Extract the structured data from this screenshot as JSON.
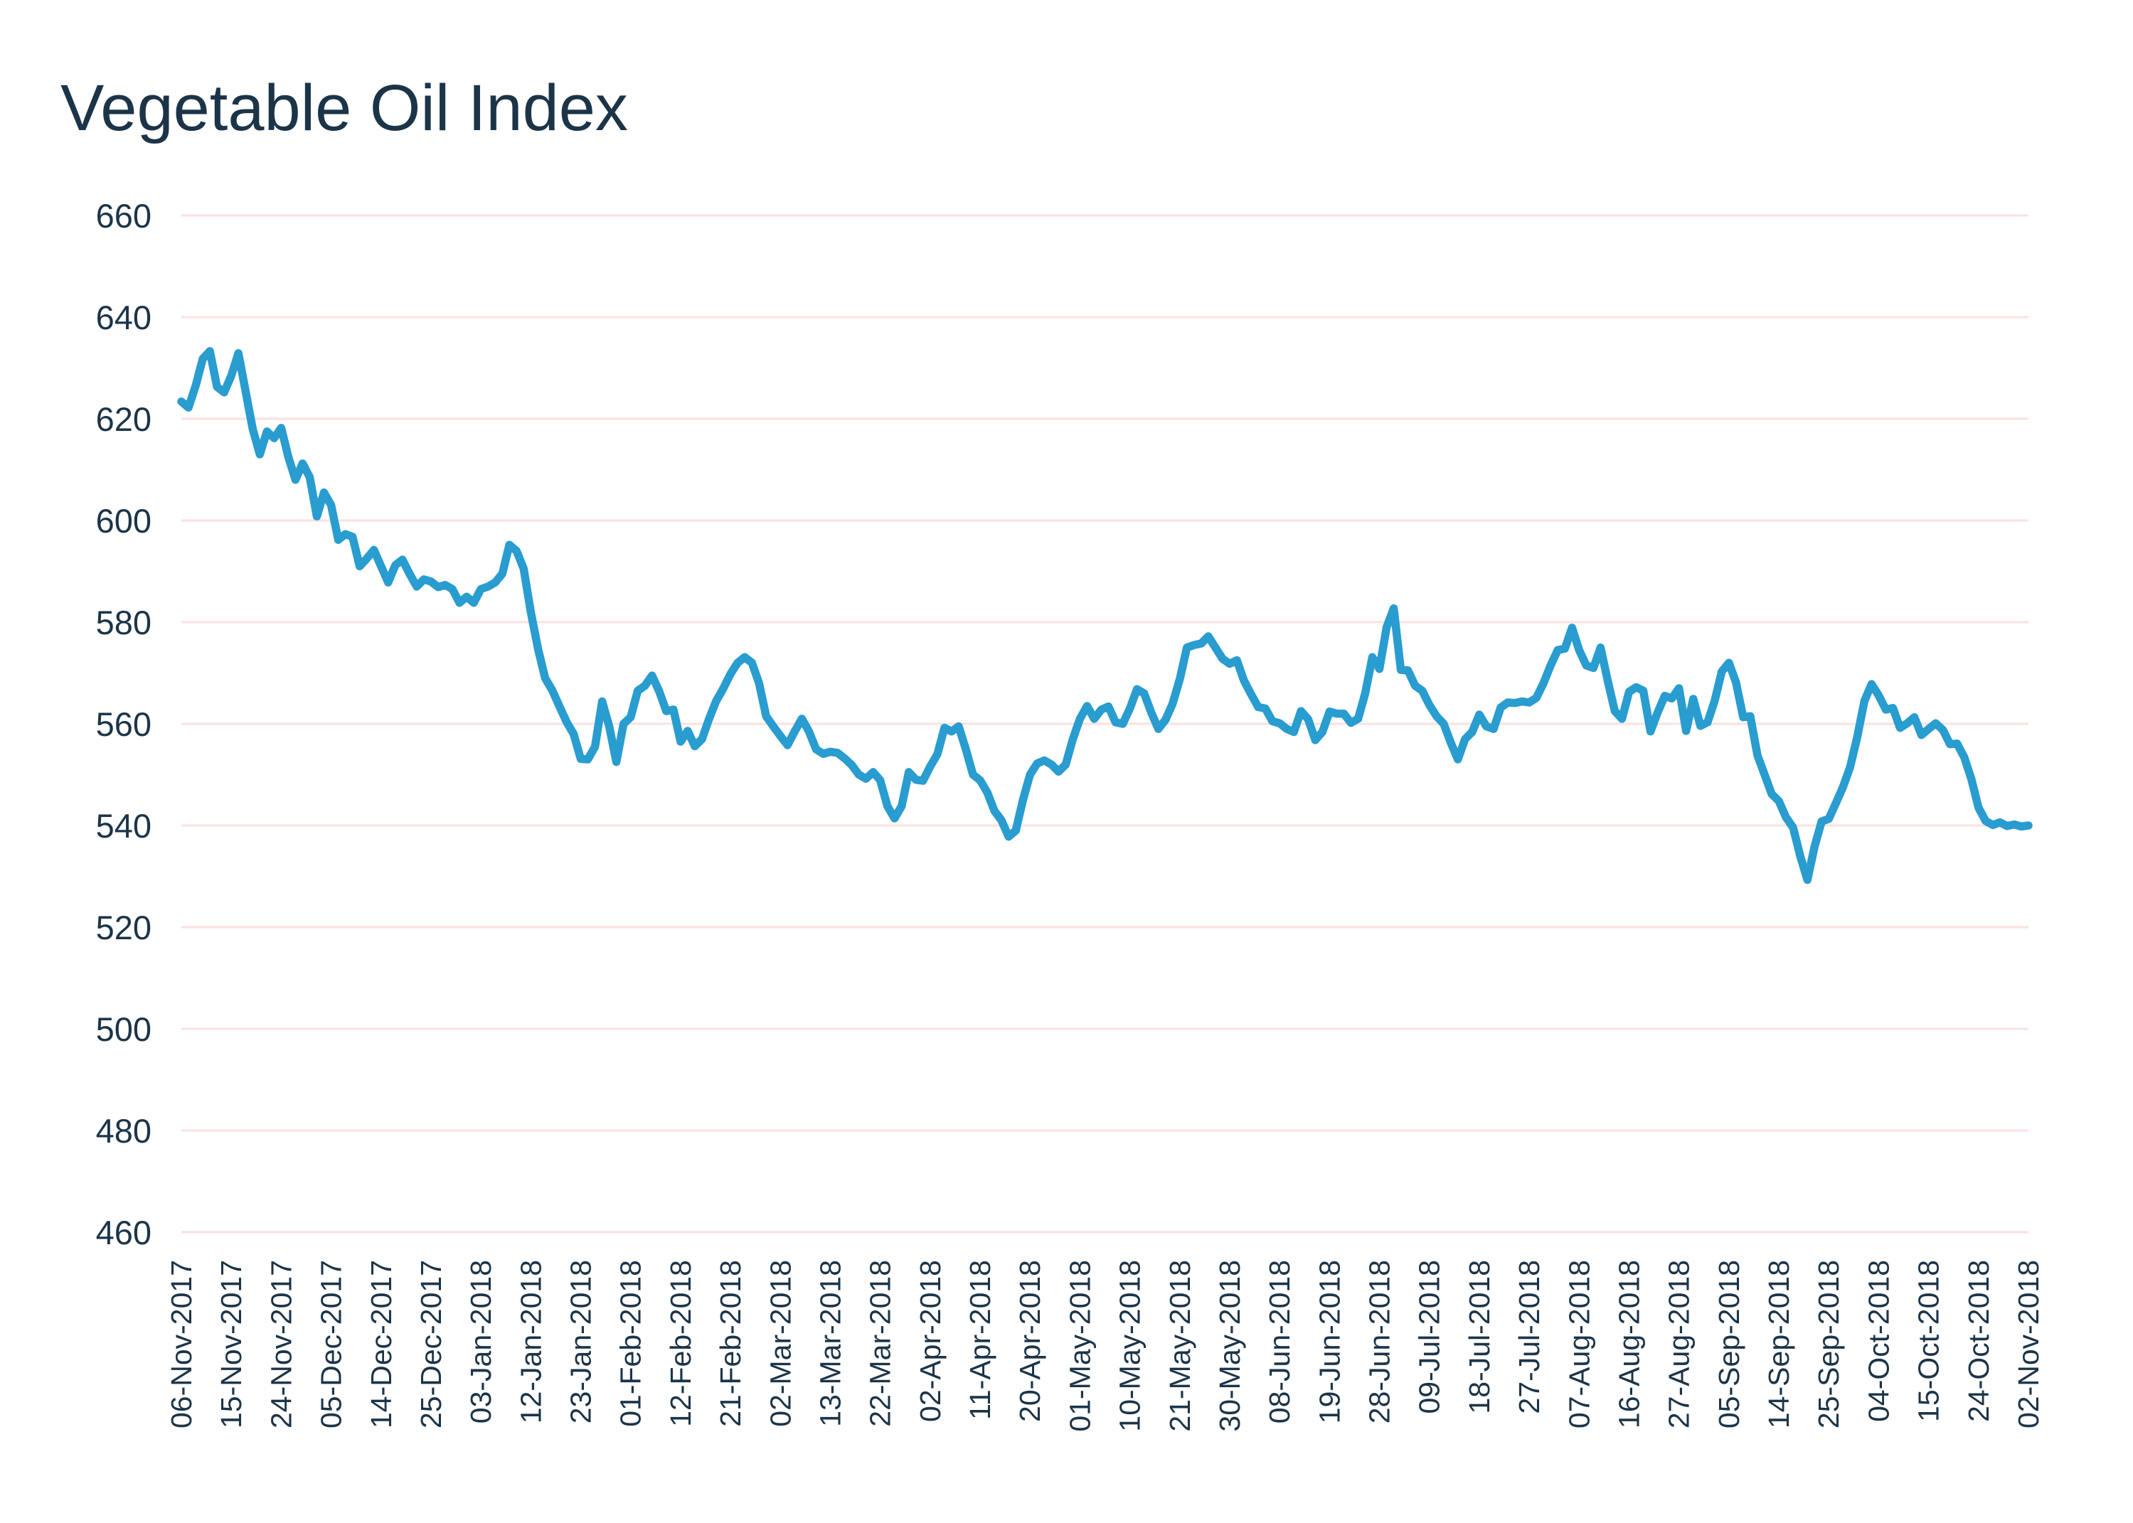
{
  "page": {
    "title": "Vegetable Oil Index"
  },
  "colors": {
    "line": "#299CD0",
    "grid": "#FAE2DF",
    "text": "#1C3448",
    "background": "#FFFFFF"
  },
  "chart_data": {
    "type": "line",
    "title": "Vegetable Oil Index",
    "xlabel": "",
    "ylabel": "",
    "ylim": [
      460,
      660
    ],
    "y_ticks": [
      460,
      480,
      500,
      520,
      540,
      560,
      580,
      600,
      620,
      640,
      660
    ],
    "grid": "horizontal",
    "legend_position": "none",
    "points_per_tick": 7,
    "x_tick_labels": [
      "06-Nov-2017",
      "15-Nov-2017",
      "24-Nov-2017",
      "05-Dec-2017",
      "14-Dec-2017",
      "25-Dec-2017",
      "03-Jan-2018",
      "12-Jan-2018",
      "23-Jan-2018",
      "01-Feb-2018",
      "12-Feb-2018",
      "21-Feb-2018",
      "02-Mar-2018",
      "13-Mar-2018",
      "22-Mar-2018",
      "02-Apr-2018",
      "11-Apr-2018",
      "20-Apr-2018",
      "01-May-2018",
      "10-May-2018",
      "21-May-2018",
      "30-May-2018",
      "08-Jun-2018",
      "19-Jun-2018",
      "28-Jun-2018",
      "09-Jul-2018",
      "18-Jul-2018",
      "27-Jul-2018",
      "07-Aug-2018",
      "16-Aug-2018",
      "27-Aug-2018",
      "05-Sep-2018",
      "14-Sep-2018",
      "25-Sep-2018",
      "04-Oct-2018",
      "15-Oct-2018",
      "24-Oct-2018",
      "02-Nov-2018"
    ],
    "series": [
      {
        "name": "Vegetable Oil Index",
        "color": "#299CD0",
        "values": [
          623.4,
          622.2,
          626.5,
          631.8,
          633.3,
          626.3,
          625.2,
          628.5,
          632.9,
          625.5,
          618.0,
          613.0,
          617.5,
          616.2,
          618.2,
          612.5,
          608.0,
          611.2,
          608.5,
          600.8,
          605.5,
          603.0,
          596.2,
          597.3,
          596.8,
          591.0,
          592.5,
          594.2,
          591.0,
          587.8,
          591.2,
          592.3,
          589.5,
          587.0,
          588.4,
          588.0,
          586.9,
          587.3,
          586.5,
          583.8,
          585.0,
          583.8,
          586.5,
          587.0,
          587.8,
          589.5,
          595.2,
          594.0,
          590.5,
          582.0,
          574.8,
          569.0,
          566.6,
          563.5,
          560.4,
          558.0,
          553.1,
          553.0,
          555.5,
          564.4,
          559.5,
          552.5,
          560.0,
          561.3,
          566.5,
          567.5,
          569.5,
          566.4,
          562.5,
          562.8,
          556.5,
          558.6,
          555.6,
          557.0,
          561.0,
          564.5,
          567.0,
          569.8,
          572.0,
          573.1,
          572.0,
          568.0,
          561.5,
          559.5,
          557.6,
          555.8,
          558.5,
          561.0,
          558.5,
          555.0,
          554.1,
          554.5,
          554.3,
          553.2,
          551.9,
          550.0,
          549.2,
          550.5,
          548.9,
          543.8,
          541.4,
          543.8,
          550.5,
          549.0,
          548.8,
          551.6,
          554.0,
          559.2,
          558.5,
          559.5,
          555.0,
          550.0,
          548.9,
          546.5,
          542.9,
          541.0,
          537.8,
          539.0,
          545.0,
          550.0,
          552.2,
          552.8,
          552.0,
          550.6,
          552.0,
          557.0,
          561.0,
          563.5,
          561.0,
          562.8,
          563.4,
          560.3,
          560.0,
          563.0,
          566.8,
          566.0,
          562.2,
          559.0,
          560.8,
          564.0,
          568.8,
          575.0,
          575.5,
          575.8,
          577.2,
          575.0,
          572.8,
          571.8,
          572.5,
          568.5,
          565.8,
          563.3,
          563.0,
          560.5,
          560.1,
          559.0,
          558.4,
          562.5,
          560.9,
          556.8,
          558.4,
          562.4,
          562.0,
          562.0,
          560.2,
          561.0,
          566.0,
          573.1,
          570.8,
          579.0,
          582.7,
          570.6,
          570.5,
          567.5,
          566.5,
          563.7,
          561.5,
          560.0,
          556.3,
          553.0,
          557.0,
          558.4,
          561.8,
          559.5,
          559.0,
          563.2,
          564.2,
          564.1,
          564.4,
          564.2,
          565.1,
          568.0,
          571.5,
          574.5,
          574.8,
          578.9,
          574.5,
          571.5,
          571.0,
          575.0,
          568.5,
          562.5,
          561.0,
          566.3,
          567.2,
          566.5,
          558.5,
          562.2,
          565.5,
          565.0,
          567.0,
          558.6,
          564.9,
          559.6,
          560.3,
          564.5,
          570.3,
          572.0,
          568.1,
          561.3,
          561.5,
          553.8,
          550.0,
          546.2,
          544.8,
          541.6,
          539.6,
          534.0,
          529.3,
          535.8,
          540.8,
          541.3,
          544.4,
          547.6,
          551.5,
          557.5,
          564.5,
          567.8,
          565.6,
          562.8,
          563.1,
          559.2,
          560.1,
          561.3,
          557.8,
          559.0,
          560.1,
          558.8,
          556.0,
          556.1,
          553.4,
          549.1,
          543.5,
          540.9,
          540.1,
          540.6,
          539.9,
          540.2,
          539.8,
          540.0
        ]
      }
    ]
  }
}
